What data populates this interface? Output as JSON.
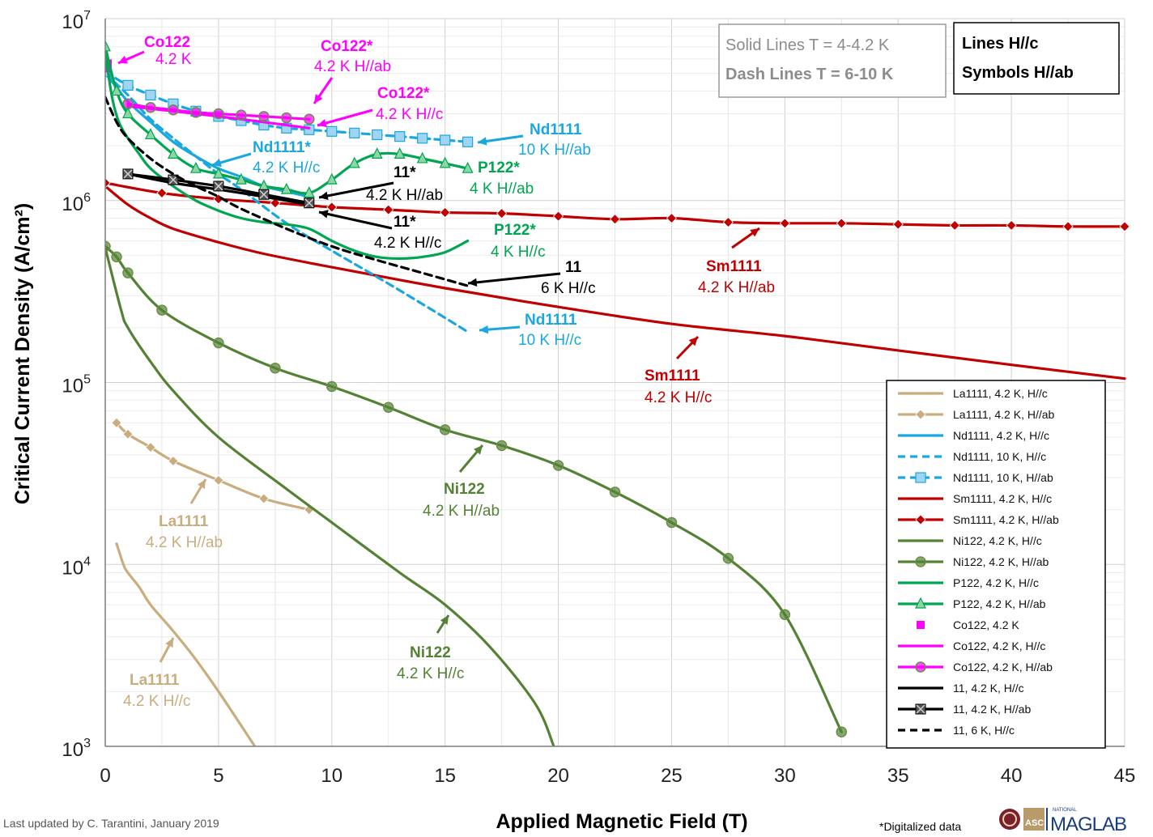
{
  "chart_data": {
    "type": "line",
    "xlabel": "Applied Magnetic Field (T)",
    "ylabel": "Critical Current Density (A/cm²)",
    "xlim": [
      0,
      45
    ],
    "ylim": [
      1000,
      10000000
    ],
    "ylog": true,
    "xticks": [
      "0",
      "5",
      "10",
      "15",
      "20",
      "25",
      "30",
      "35",
      "40",
      "45"
    ],
    "yticks": [
      {
        "base": "10",
        "exp": "7",
        "v": 10000000
      },
      {
        "base": "10",
        "exp": "6",
        "v": 1000000
      },
      {
        "base": "10",
        "exp": "5",
        "v": 100000
      },
      {
        "base": "10",
        "exp": "4",
        "v": 10000
      },
      {
        "base": "10",
        "exp": "3",
        "v": 1000
      }
    ],
    "grid": true,
    "legend_position": "bottom-right",
    "series": [
      {
        "name": "La1111, 4.2 K, H//c",
        "color": "#c9ad7f",
        "dash": false,
        "marker": "none",
        "x": [
          0.5,
          0.8,
          1,
          1.5,
          2,
          3,
          4,
          5,
          6,
          6.6
        ],
        "y": [
          13000,
          10000,
          9000,
          7500,
          6000,
          4300,
          3000,
          2000,
          1300,
          1000
        ]
      },
      {
        "name": "La1111, 4.2 K, H//ab",
        "color": "#c9ad7f",
        "dash": false,
        "marker": "diamond",
        "x": [
          0.5,
          1,
          2,
          3,
          5,
          7,
          9
        ],
        "y": [
          60000,
          52000,
          44000,
          37000,
          29000,
          23000,
          20000
        ]
      },
      {
        "name": "Nd1111, 4.2 K, H//c",
        "color": "#1aa7e0",
        "dash": false,
        "marker": "none",
        "x": [
          0,
          0.5,
          1,
          2,
          3,
          4,
          5,
          6,
          7,
          8,
          9
        ],
        "y": [
          5000000,
          4200000,
          3500000,
          2700000,
          2100000,
          1750000,
          1500000,
          1350000,
          1200000,
          1120000,
          1050000
        ]
      },
      {
        "name": "Nd1111, 10 K, H//c",
        "color": "#1aa7e0",
        "dash": true,
        "marker": "none",
        "x": [
          0,
          1,
          2,
          3,
          4,
          5,
          6,
          8,
          10,
          12,
          14,
          16
        ],
        "y": [
          5000000,
          3800000,
          2800000,
          2200000,
          1750000,
          1400000,
          1150000,
          750000,
          530000,
          380000,
          270000,
          190000
        ]
      },
      {
        "name": "Nd1111, 10 K, H//ab",
        "color": "#1aa7e0",
        "dash": true,
        "marker": "square",
        "x": [
          0,
          1,
          2,
          3,
          4,
          5,
          6,
          7,
          8,
          9,
          10,
          11,
          12,
          13,
          14,
          15,
          16
        ],
        "y": [
          5100000,
          4300000,
          3800000,
          3400000,
          3100000,
          2900000,
          2750000,
          2600000,
          2500000,
          2450000,
          2400000,
          2350000,
          2300000,
          2250000,
          2200000,
          2150000,
          2100000
        ]
      },
      {
        "name": "Sm1111, 4.2 K, H//c",
        "color": "#c00000",
        "dash": false,
        "marker": "none",
        "x": [
          0,
          1,
          2,
          3,
          5,
          7,
          10,
          15,
          20,
          25,
          30,
          35,
          40,
          45
        ],
        "y": [
          1200000,
          950000,
          800000,
          700000,
          590000,
          510000,
          430000,
          330000,
          260000,
          210000,
          180000,
          150000,
          125000,
          105000
        ]
      },
      {
        "name": "Sm1111, 4.2 K, H//ab",
        "color": "#c00000",
        "dash": false,
        "marker": "diamond",
        "x": [
          0,
          2.5,
          5,
          7.5,
          10,
          12.5,
          15,
          17.5,
          20,
          22.5,
          25,
          27.5,
          30,
          32.5,
          35,
          37.5,
          40,
          42.5,
          45
        ],
        "y": [
          1250000,
          1100000,
          1020000,
          970000,
          920000,
          890000,
          860000,
          850000,
          820000,
          790000,
          800000,
          760000,
          750000,
          750000,
          740000,
          730000,
          730000,
          720000,
          720000
        ]
      },
      {
        "name": "Ni122, 4.2 K, H//c",
        "color": "#548235",
        "dash": false,
        "marker": "none",
        "x": [
          0,
          0.7,
          1,
          2,
          3,
          5,
          8,
          10,
          13,
          15,
          17,
          19,
          19.8
        ],
        "y": [
          550000,
          250000,
          200000,
          130000,
          90000,
          50000,
          26000,
          17000,
          9000,
          6000,
          3500,
          1700,
          1000
        ]
      },
      {
        "name": "Ni122, 4.2 K, H//ab",
        "color": "#548235",
        "dash": false,
        "marker": "circle",
        "x": [
          0,
          0.5,
          1,
          2.5,
          5,
          7.5,
          10,
          12.5,
          15,
          17.5,
          20,
          22.5,
          25,
          27.5,
          30,
          32.5
        ],
        "y": [
          560000,
          490000,
          400000,
          250000,
          165000,
          120000,
          95000,
          73000,
          55000,
          45000,
          35000,
          25000,
          17000,
          10800,
          5300,
          1200
        ]
      },
      {
        "name": "P122, 4.2 K, H//c",
        "color": "#00a651",
        "dash": false,
        "marker": "none",
        "x": [
          0,
          0.3,
          0.6,
          1,
          1.5,
          2,
          3,
          4,
          5,
          6,
          7,
          8,
          9,
          10,
          11,
          12,
          13,
          14,
          15,
          16
        ],
        "y": [
          6500000,
          3700000,
          2700000,
          2200000,
          1800000,
          1500000,
          1200000,
          1000000,
          880000,
          800000,
          760000,
          740000,
          700000,
          600000,
          530000,
          490000,
          480000,
          490000,
          520000,
          600000
        ]
      },
      {
        "name": "P122, 4.2 K, H//ab",
        "color": "#00a651",
        "dash": false,
        "marker": "triangle",
        "x": [
          0,
          0.5,
          1,
          2,
          3,
          4,
          5,
          6,
          7,
          8,
          9,
          10,
          11,
          12,
          13,
          14,
          15,
          16
        ],
        "y": [
          7000000,
          4000000,
          3000000,
          2300000,
          1800000,
          1500000,
          1400000,
          1300000,
          1200000,
          1150000,
          1100000,
          1300000,
          1600000,
          1800000,
          1800000,
          1700000,
          1600000,
          1500000
        ]
      },
      {
        "name": "Co122, 4.2 K",
        "color": "#ff00ff",
        "dash": false,
        "marker": "square-big",
        "x": [
          0
        ],
        "y": [
          5500000
        ]
      },
      {
        "name": "Co122, 4.2 K, H//c",
        "color": "#ff00ff",
        "dash": false,
        "marker": "none",
        "x": [
          1,
          3,
          5,
          7,
          9
        ],
        "y": [
          3300000,
          3100000,
          2900000,
          2700000,
          2500000
        ]
      },
      {
        "name": "Co122, 4.2 K, H//ab",
        "color": "#ff00ff",
        "dash": false,
        "marker": "circle",
        "x": [
          1,
          2,
          3,
          4,
          5,
          6,
          7,
          8,
          9
        ],
        "y": [
          3400000,
          3250000,
          3150000,
          3050000,
          3000000,
          2950000,
          2900000,
          2850000,
          2800000
        ]
      },
      {
        "name": "11, 4.2 K, H//c",
        "color": "#000000",
        "dash": false,
        "marker": "none",
        "x": [
          1,
          3,
          5,
          7,
          9
        ],
        "y": [
          1400000,
          1250000,
          1150000,
          1050000,
          950000
        ]
      },
      {
        "name": "11, 4.2 K, H//ab",
        "color": "#000000",
        "dash": false,
        "marker": "xsquare",
        "x": [
          1,
          3,
          5,
          7,
          9
        ],
        "y": [
          1400000,
          1300000,
          1200000,
          1080000,
          970000
        ]
      },
      {
        "name": "11, 6 K, H//c",
        "color": "#000000",
        "dash": true,
        "marker": "none",
        "x": [
          0,
          0.5,
          1,
          2,
          3,
          4,
          5,
          6,
          8,
          10,
          12,
          14,
          16
        ],
        "y": [
          3700000,
          2700000,
          2200000,
          1700000,
          1400000,
          1200000,
          1050000,
          900000,
          700000,
          560000,
          470000,
          400000,
          340000
        ]
      }
    ],
    "annotations": [
      {
        "name": "Co122",
        "cond": "4.2 K",
        "color": "#ff00ff"
      },
      {
        "name": "Co122*",
        "cond": "4.2 K H//ab",
        "color": "#ff00ff"
      },
      {
        "name": "Co122*",
        "cond": "4.2 K H//c",
        "color": "#ff00ff"
      },
      {
        "name": "Nd1111",
        "cond": "10 K H//ab",
        "color": "#1aa7e0"
      },
      {
        "name": "Nd1111*",
        "cond": "4.2 K H//c",
        "color": "#1aa7e0"
      },
      {
        "name": "11*",
        "cond": "4.2 K H//ab",
        "color": "#000000"
      },
      {
        "name": "P122*",
        "cond": "4 K H//ab",
        "color": "#00a651"
      },
      {
        "name": "11*",
        "cond": "4.2 K H//c",
        "color": "#000000"
      },
      {
        "name": "P122*",
        "cond": "4 K H//c",
        "color": "#00a651"
      },
      {
        "name": "11",
        "cond": "6 K H//c",
        "color": "#000000"
      },
      {
        "name": "Nd1111",
        "cond": "10 K H//c",
        "color": "#1aa7e0"
      },
      {
        "name": "Sm1111",
        "cond": "4.2 K H//ab",
        "color": "#c00000"
      },
      {
        "name": "Sm1111",
        "cond": "4.2 K H//c",
        "color": "#c00000"
      },
      {
        "name": "Ni122",
        "cond": "4.2 K H//ab",
        "color": "#548235"
      },
      {
        "name": "La1111",
        "cond": "4.2 K H//ab",
        "color": "#c9ad7f"
      },
      {
        "name": "Ni122",
        "cond": "4.2 K H//c",
        "color": "#548235"
      },
      {
        "name": "La1111",
        "cond": "4.2 K H//c",
        "color": "#c9ad7f"
      }
    ],
    "notes": {
      "temps_line1": "Solid Lines T = 4-4.2 K",
      "temps_line2": "Dash Lines T = 6-10 K",
      "orient_line1": "Lines H//c",
      "orient_line2": "Symbols H//ab"
    }
  },
  "footer": {
    "updated": "Last updated by C. Tarantini, January 2019",
    "digitalized": "*Digitalized data",
    "logo_asc": "ASC",
    "logo_national": "NATIONAL",
    "logo_maglab": "MAGLAB"
  }
}
